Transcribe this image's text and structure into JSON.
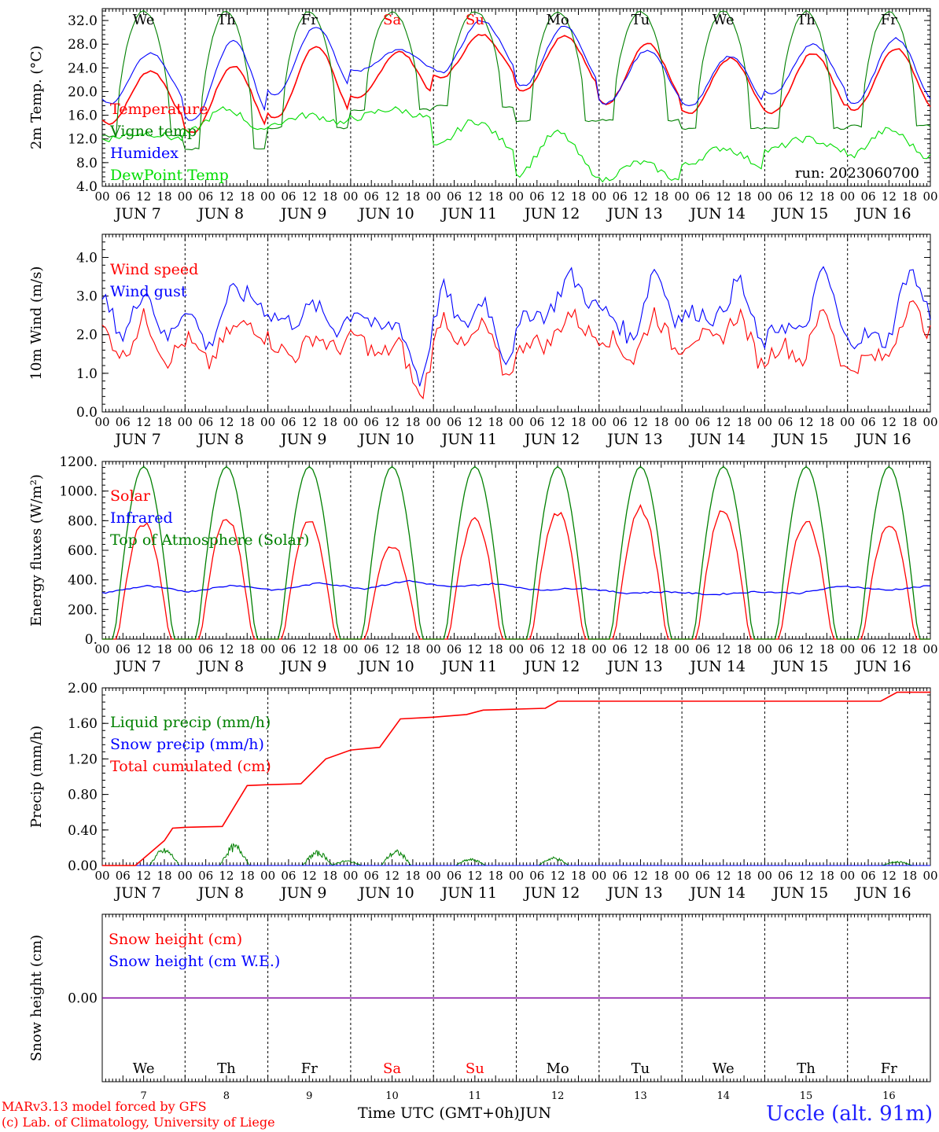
{
  "run_label": "run: 2023060700",
  "days_of_week": [
    "We",
    "Th",
    "Fr",
    "Sa",
    "Su",
    "Mo",
    "Tu",
    "We",
    "Th",
    "Fr"
  ],
  "weekend_flags": [
    false,
    false,
    false,
    true,
    true,
    false,
    false,
    false,
    false,
    false
  ],
  "hour_ticks": [
    "00",
    "06",
    "12",
    "18"
  ],
  "date_labels": [
    "JUN  7",
    "JUN  8",
    "JUN  9",
    "JUN 10",
    "JUN 11",
    "JUN 12",
    "JUN 13",
    "JUN 14",
    "JUN 15",
    "JUN 16"
  ],
  "day_numbers": [
    "7",
    "8",
    "9",
    "10",
    "11",
    "12",
    "13",
    "14",
    "15",
    "16"
  ],
  "x_axis_title": "Time UTC (GMT+0h)JUN",
  "credit_line1": "MARv3.13 model forced by GFS",
  "credit_line2": "(c) Lab. of Climatology, University of Liege",
  "station": "Uccle (alt. 91m)",
  "colors": {
    "red": "#ff0000",
    "green_dark": "#008000",
    "blue": "#0000ff",
    "green_light": "#00dd00",
    "purple": "#8000a0"
  },
  "chart_data": [
    {
      "type": "line",
      "ylabel": "2m Temp. (°C)",
      "ylim": [
        4,
        34
      ],
      "yticks": [
        "4.0",
        "8.0",
        "12.0",
        "16.0",
        "20.0",
        "24.0",
        "28.0",
        "32.0"
      ],
      "ytick_values": [
        4,
        8,
        12,
        16,
        20,
        24,
        28,
        32
      ],
      "x_days": [
        0,
        1,
        2,
        3,
        4,
        5,
        6,
        7,
        8,
        9,
        10
      ],
      "series": [
        {
          "name": "Temperature",
          "color": "#ff0000",
          "min": [
            14.6,
            13.0,
            15.5,
            18.8,
            22.3,
            20.2,
            17.9,
            16.2,
            16.3,
            16.9
          ],
          "max": [
            23.5,
            24.3,
            27.6,
            26.7,
            29.6,
            29.5,
            28.1,
            25.6,
            26.5,
            27.3
          ]
        },
        {
          "name": "Vigne temp",
          "color": "#008000",
          "min": [
            12.5,
            10.3,
            13.9,
            16.9,
            17.5,
            15.0,
            15.2,
            13.8,
            13.8,
            14.2
          ],
          "max": [
            33.5,
            33.5,
            33.5,
            33.5,
            33.5,
            33.5,
            33.5,
            33.5,
            33.5,
            33.5
          ]
        },
        {
          "name": "Humidex",
          "color": "#0000ff",
          "min": [
            18.0,
            15.0,
            19.5,
            23.5,
            23.2,
            21.0,
            18.0,
            17.5,
            19.5,
            18.0
          ],
          "max": [
            26.5,
            28.5,
            31.0,
            27.0,
            32.0,
            31.0,
            27.0,
            26.0,
            28.0,
            29.0
          ]
        },
        {
          "name": "DewPoint Temp",
          "color": "#00dd00",
          "min": [
            12.0,
            13.0,
            14.5,
            15.5,
            10.5,
            6.0,
            5.0,
            7.5,
            10.0,
            9.0
          ],
          "max": [
            13.0,
            17.0,
            16.0,
            17.0,
            15.0,
            13.0,
            8.0,
            10.5,
            12.0,
            13.5
          ]
        }
      ]
    },
    {
      "type": "line",
      "ylabel": "10m Wind (m/s)",
      "ylim": [
        0,
        4.6
      ],
      "yticks": [
        "0.0",
        "1.0",
        "2.0",
        "3.0",
        "4.0"
      ],
      "ytick_values": [
        0,
        1,
        2,
        3,
        4
      ],
      "series": [
        {
          "name": "Wind speed",
          "color": "#ff0000",
          "values": [
            2.2,
            1.4,
            2.5,
            1.3,
            1.9,
            1.2,
            2.1,
            2.3,
            1.8,
            1.4,
            2.0,
            1.6,
            2.0,
            1.4,
            1.8,
            0.25,
            2.6,
            1.6,
            2.3,
            0.9,
            1.9,
            1.7,
            2.6,
            2.0,
            1.9,
            1.3,
            2.6,
            1.6,
            2.0,
            1.8,
            2.6,
            1.2,
            1.8,
            1.3,
            2.8,
            1.0,
            1.4,
            1.4,
            2.9,
            2.0
          ]
        },
        {
          "name": "Wind gust",
          "color": "#0000ff",
          "values": [
            3.0,
            1.9,
            3.3,
            1.8,
            2.8,
            1.6,
            3.1,
            3.0,
            2.5,
            2.3,
            2.8,
            2.1,
            2.7,
            2.1,
            2.3,
            0.7,
            3.3,
            2.1,
            3.0,
            1.3,
            2.6,
            2.5,
            3.6,
            2.8,
            2.5,
            1.8,
            3.8,
            2.4,
            2.6,
            2.4,
            3.5,
            1.7,
            2.3,
            2.0,
            3.8,
            1.8,
            2.0,
            1.8,
            3.8,
            2.5
          ]
        }
      ]
    },
    {
      "type": "line",
      "ylabel": "Energy fluxes (W/m²)",
      "ylim": [
        0,
        1200
      ],
      "yticks": [
        "0.",
        "200.",
        "400.",
        "600.",
        "800.",
        "1000.",
        "1200."
      ],
      "ytick_values": [
        0,
        200,
        400,
        600,
        800,
        1000,
        1200
      ],
      "series": [
        {
          "name": "Solar",
          "color": "#ff0000",
          "daily_peak": [
            790,
            830,
            800,
            640,
            810,
            860,
            890,
            880,
            810,
            790
          ]
        },
        {
          "name": "Infrared",
          "color": "#0000ff",
          "values": [
            310,
            360,
            320,
            365,
            330,
            380,
            340,
            395,
            350,
            375,
            330,
            345,
            310,
            320,
            300,
            320,
            310,
            360,
            330,
            360
          ]
        },
        {
          "name": "Top of Atmosphere (Solar)",
          "color": "#008000",
          "daily_peak": [
            1165,
            1165,
            1165,
            1165,
            1165,
            1165,
            1165,
            1165,
            1165,
            1165
          ]
        }
      ]
    },
    {
      "type": "line",
      "ylabel": "Precip (mm/h)",
      "ylim": [
        0,
        2.0
      ],
      "yticks": [
        "0.00",
        "0.40",
        "0.80",
        "1.20",
        "1.60",
        "2.00"
      ],
      "ytick_values": [
        0,
        0.4,
        0.8,
        1.2,
        1.6,
        2.0
      ],
      "series": [
        {
          "name": "Liquid precip (mm/h)",
          "color": "#008000",
          "bursts": [
            {
              "day": 0.75,
              "peak": 0.2
            },
            {
              "day": 1.6,
              "peak": 0.25
            },
            {
              "day": 2.6,
              "peak": 0.17
            },
            {
              "day": 2.95,
              "peak": 0.06
            },
            {
              "day": 3.55,
              "peak": 0.18
            },
            {
              "day": 4.45,
              "peak": 0.08
            },
            {
              "day": 5.45,
              "peak": 0.1
            },
            {
              "day": 9.6,
              "peak": 0.05
            }
          ]
        },
        {
          "name": "Snow precip (mm/h)",
          "color": "#0000ff",
          "values": [
            0
          ]
        },
        {
          "name": "Total cumulated (cm)",
          "color": "#ff0000",
          "x": [
            0.0,
            0.4,
            0.75,
            0.85,
            1.0,
            1.45,
            1.75,
            2.0,
            2.4,
            2.7,
            3.0,
            3.35,
            3.6,
            4.0,
            4.4,
            4.6,
            5.35,
            5.5,
            9.4,
            9.6,
            10.0
          ],
          "y": [
            0.0,
            0.0,
            0.28,
            0.42,
            0.43,
            0.44,
            0.9,
            0.91,
            0.92,
            1.2,
            1.3,
            1.33,
            1.65,
            1.67,
            1.7,
            1.75,
            1.77,
            1.85,
            1.85,
            1.95,
            1.95
          ]
        }
      ]
    },
    {
      "type": "line",
      "ylabel": "Snow height (cm)",
      "ylim": [
        -1,
        1
      ],
      "yticks": [
        "0.00"
      ],
      "ytick_values": [
        0
      ],
      "series": [
        {
          "name": "Snow height (cm)",
          "color": "#ff0000",
          "values": [
            0
          ]
        },
        {
          "name": "Snow height (cm W.E.)",
          "color": "#0000ff",
          "values": [
            0
          ]
        }
      ]
    }
  ]
}
